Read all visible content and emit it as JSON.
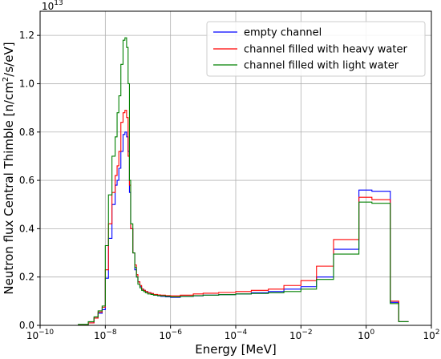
{
  "chart_data": {
    "type": "line",
    "step": true,
    "xscale": "log",
    "xlim": [
      1e-10,
      100
    ],
    "ylim": [
      0,
      1.3
    ],
    "y_multiplier_label": "10",
    "y_multiplier_exp": "13",
    "xlabel": "Energy [MeV]",
    "ylabel": {
      "prefix": "Neutron flux Central Thimble [n/cm",
      "sup": "2",
      "suffix": "/s/eV]"
    },
    "grid": true,
    "legend_position": "top-right",
    "x_ticks": [
      {
        "value": 1e-10,
        "base": "10",
        "exp": "−10"
      },
      {
        "value": 1e-08,
        "base": "10",
        "exp": "−8"
      },
      {
        "value": 1e-06,
        "base": "10",
        "exp": "−6"
      },
      {
        "value": 0.0001,
        "base": "10",
        "exp": "−4"
      },
      {
        "value": 0.01,
        "base": "10",
        "exp": "−2"
      },
      {
        "value": 1,
        "base": "10",
        "exp": "0"
      },
      {
        "value": 100,
        "base": "10",
        "exp": "2"
      }
    ],
    "y_ticks": [
      {
        "value": 0,
        "label": "0.0"
      },
      {
        "value": 0.2,
        "label": "0.2"
      },
      {
        "value": 0.4,
        "label": "0.4"
      },
      {
        "value": 0.6,
        "label": "0.6"
      },
      {
        "value": 0.8,
        "label": "0.8"
      },
      {
        "value": 1.0,
        "label": "1.0"
      },
      {
        "value": 1.2,
        "label": "1.2"
      }
    ],
    "edges": [
      1e-10,
      1.5e-09,
      3e-09,
      4.5e-09,
      6e-09,
      8e-09,
      1e-08,
      1.25e-08,
      1.6e-08,
      2e-08,
      2.3e-08,
      2.6e-08,
      3e-08,
      3.5e-08,
      4e-08,
      4.5e-08,
      5e-08,
      5.5e-08,
      6e-08,
      7e-08,
      8e-08,
      9e-08,
      1e-07,
      1.15e-07,
      1.3e-07,
      1.5e-07,
      1.7e-07,
      2e-07,
      2.5e-07,
      3e-07,
      4e-07,
      5e-07,
      7e-07,
      1e-06,
      2e-06,
      5e-06,
      1e-05,
      3e-05,
      0.0001,
      0.0003,
      0.001,
      0.003,
      0.01,
      0.03,
      0.1,
      0.18,
      0.6,
      1.5,
      5.5,
      10,
      20
    ],
    "series": [
      {
        "name": "empty channel",
        "color": "#0000ff",
        "values": [
          0.0,
          0.003,
          0.01,
          0.03,
          0.05,
          0.065,
          0.195,
          0.36,
          0.5,
          0.58,
          0.6,
          0.65,
          0.72,
          0.79,
          0.8,
          0.78,
          0.72,
          0.55,
          0.4,
          0.3,
          0.23,
          0.2,
          0.18,
          0.16,
          0.15,
          0.145,
          0.14,
          0.135,
          0.13,
          0.125,
          0.122,
          0.12,
          0.118,
          0.116,
          0.12,
          0.122,
          0.125,
          0.127,
          0.13,
          0.135,
          0.14,
          0.15,
          0.16,
          0.2,
          0.315,
          0.315,
          0.56,
          0.555,
          0.095,
          0.015
        ]
      },
      {
        "name": "channel filled with heavy water",
        "color": "#ff0000",
        "values": [
          0.0,
          0.003,
          0.01,
          0.03,
          0.055,
          0.075,
          0.23,
          0.42,
          0.55,
          0.62,
          0.66,
          0.72,
          0.84,
          0.88,
          0.89,
          0.86,
          0.7,
          0.58,
          0.4,
          0.3,
          0.25,
          0.21,
          0.18,
          0.165,
          0.15,
          0.145,
          0.14,
          0.135,
          0.132,
          0.128,
          0.126,
          0.125,
          0.123,
          0.122,
          0.125,
          0.13,
          0.133,
          0.136,
          0.14,
          0.145,
          0.15,
          0.165,
          0.185,
          0.245,
          0.355,
          0.355,
          0.53,
          0.52,
          0.1,
          0.015
        ]
      },
      {
        "name": "channel filled with light water",
        "color": "#008000",
        "values": [
          0.0,
          0.004,
          0.015,
          0.035,
          0.06,
          0.08,
          0.33,
          0.54,
          0.7,
          0.78,
          0.88,
          0.95,
          1.08,
          1.18,
          1.19,
          1.15,
          1.0,
          0.6,
          0.42,
          0.3,
          0.24,
          0.2,
          0.17,
          0.155,
          0.145,
          0.14,
          0.135,
          0.13,
          0.128,
          0.125,
          0.123,
          0.122,
          0.12,
          0.118,
          0.12,
          0.123,
          0.125,
          0.127,
          0.13,
          0.132,
          0.135,
          0.14,
          0.15,
          0.19,
          0.295,
          0.295,
          0.51,
          0.505,
          0.09,
          0.015
        ]
      }
    ]
  }
}
